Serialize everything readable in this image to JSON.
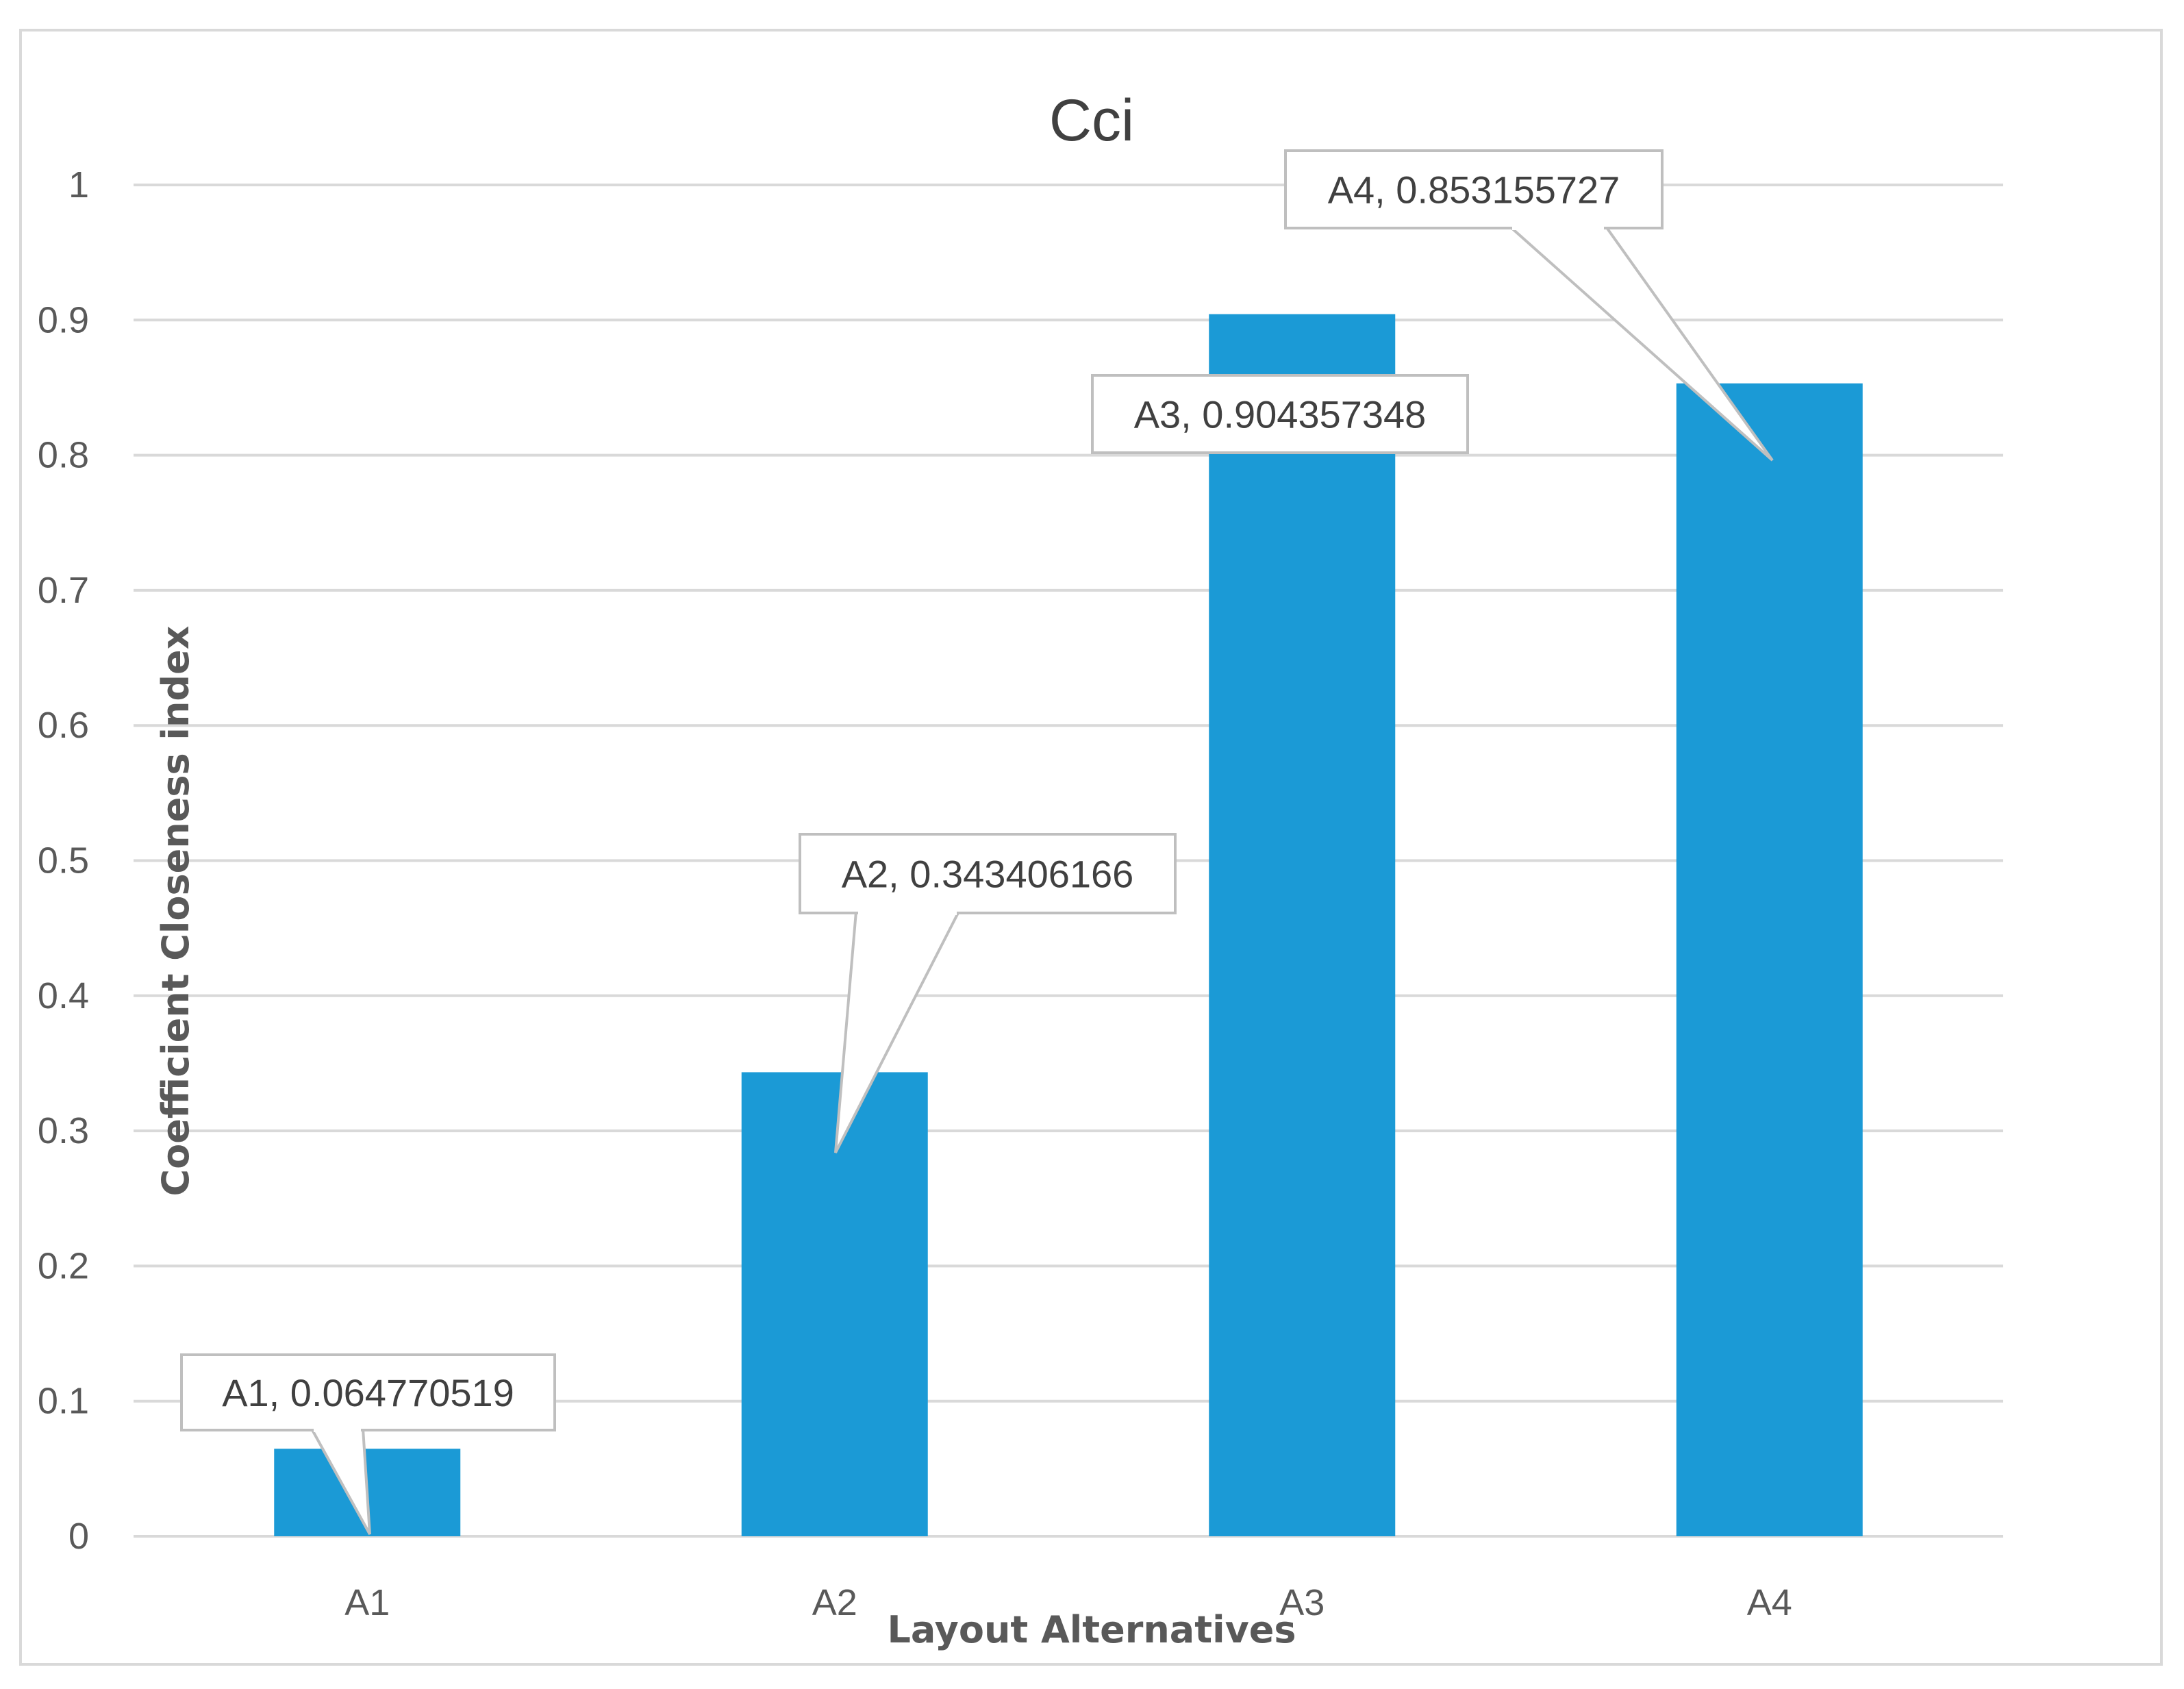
{
  "chart_data": {
    "type": "bar",
    "title": "Cci",
    "xlabel": "Layout Alternatives",
    "ylabel": "Coefficient Closeness index",
    "categories": [
      "A1",
      "A2",
      "A3",
      "A4"
    ],
    "values": [
      0.064770519,
      0.343406166,
      0.904357348,
      0.853155727
    ],
    "data_labels": [
      "A1, 0.064770519",
      "A2, 0.343406166",
      "A3, 0.904357348",
      "A4, 0.853155727"
    ],
    "ylim": [
      0,
      1
    ],
    "yticks": [
      "0",
      "0.1",
      "0.2",
      "0.3",
      "0.4",
      "0.5",
      "0.6",
      "0.7",
      "0.8",
      "0.9",
      "1"
    ],
    "grid": true,
    "legend": "none",
    "colors": {
      "bar": "#1b9ad6",
      "grid": "#d9d9d9",
      "callout_border": "#bfbfbf"
    }
  }
}
